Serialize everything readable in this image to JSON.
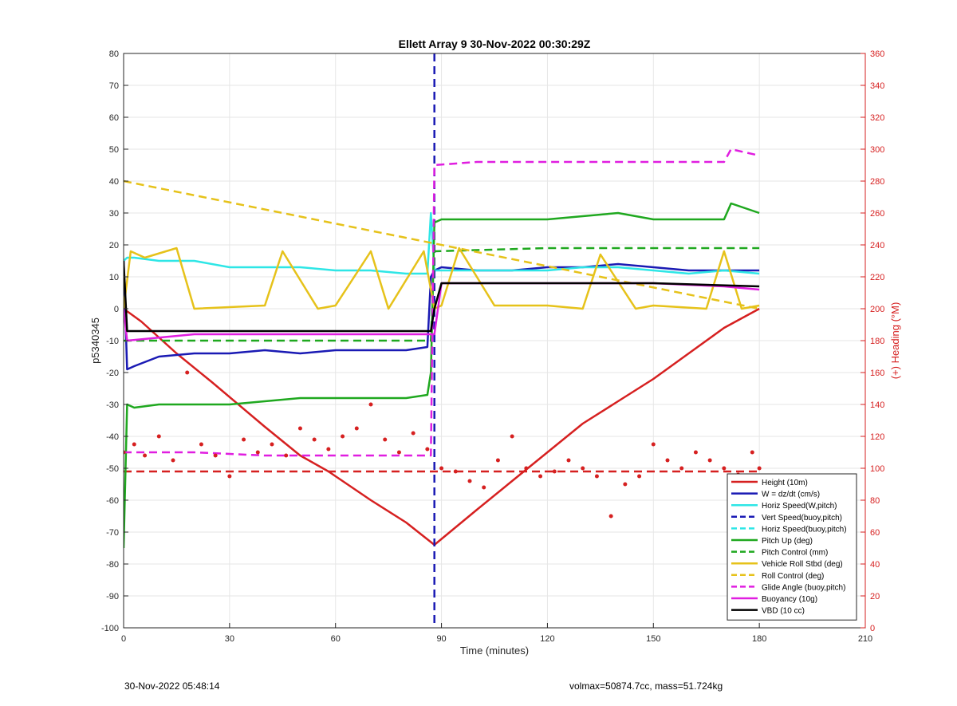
{
  "chart_data": {
    "type": "line",
    "title": "Ellett Array 9 30-Nov-2022 00:30:29Z",
    "xlabel": "Time (minutes)",
    "ylabel": "p5340345",
    "y2label": "(+) Heading (°M)",
    "xlim": [
      0,
      210
    ],
    "ylim": [
      -100,
      80
    ],
    "y2lim": [
      0,
      360
    ],
    "xticks": [
      0,
      30,
      60,
      90,
      120,
      150,
      180,
      210
    ],
    "yticks": [
      -100,
      -90,
      -80,
      -70,
      -60,
      -50,
      -40,
      -30,
      -20,
      -10,
      0,
      10,
      20,
      30,
      40,
      50,
      60,
      70,
      80
    ],
    "y2ticks": [
      0,
      20,
      40,
      60,
      80,
      100,
      120,
      140,
      160,
      180,
      200,
      220,
      240,
      260,
      280,
      300,
      320,
      340,
      360
    ],
    "grid": true,
    "legend_position": "bottom-right",
    "colors": {
      "height": "#d62020",
      "w": "#1a1ab4",
      "cyan": "#2ee6e6",
      "green": "#1fa81f",
      "gold": "#e6c21a",
      "magenta": "#e01ee0",
      "black": "#000000",
      "right_axis": "#d62020"
    },
    "series": [
      {
        "name": "Height (10m)",
        "color": "#d62020",
        "dash": "solid",
        "x": [
          0,
          5,
          15,
          25,
          40,
          50,
          58,
          70,
          80,
          88,
          100,
          110,
          120,
          130,
          140,
          150,
          160,
          170,
          180
        ],
        "y": [
          0,
          -4,
          -14,
          -23,
          -37,
          -46,
          -51,
          -60,
          -67,
          -74,
          -63,
          -54,
          -45,
          -36,
          -29,
          -22,
          -14,
          -6,
          0
        ]
      },
      {
        "name": "W = dz/dt (cm/s)",
        "color": "#1a1ab4",
        "dash": "solid",
        "x": [
          0,
          1,
          3,
          10,
          20,
          30,
          40,
          50,
          60,
          70,
          80,
          86,
          87,
          88,
          90,
          100,
          110,
          120,
          130,
          140,
          150,
          160,
          170,
          180
        ],
        "y": [
          15,
          -19,
          -18,
          -15,
          -14,
          -14,
          -13,
          -14,
          -13,
          -13,
          -13,
          -12,
          10,
          12,
          13,
          12,
          12,
          13,
          13,
          14,
          13,
          12,
          12,
          12
        ]
      },
      {
        "name": "Horiz Speed(W,pitch)",
        "color": "#2ee6e6",
        "dash": "solid",
        "x": [
          0,
          1,
          3,
          10,
          20,
          30,
          40,
          50,
          60,
          70,
          80,
          86,
          87,
          88,
          90,
          100,
          110,
          120,
          130,
          140,
          150,
          160,
          170,
          180
        ],
        "y": [
          15,
          16,
          16,
          15,
          15,
          13,
          13,
          13,
          12,
          12,
          11,
          11,
          30,
          12,
          12,
          12,
          12,
          12,
          13,
          13,
          12,
          11,
          12,
          11
        ]
      },
      {
        "name": "Vert Speed(buoy,pitch)",
        "color": "#1a1ab4",
        "dash": "dashed",
        "x": [
          88,
          88
        ],
        "y": [
          80,
          -100
        ]
      },
      {
        "name": "Horiz Speed(buoy,pitch)",
        "color": "#2ee6e6",
        "dash": "dashed",
        "x": [],
        "y": []
      },
      {
        "name": "Pitch Up (deg)",
        "color": "#1fa81f",
        "dash": "solid",
        "x": [
          0,
          1,
          3,
          10,
          20,
          30,
          40,
          50,
          60,
          70,
          80,
          86,
          87,
          88,
          90,
          100,
          110,
          120,
          130,
          140,
          150,
          160,
          170,
          172,
          180
        ],
        "y": [
          -75,
          -30,
          -31,
          -30,
          -30,
          -30,
          -29,
          -28,
          -28,
          -28,
          -28,
          -27,
          -20,
          27,
          28,
          28,
          28,
          28,
          29,
          30,
          28,
          28,
          28,
          33,
          30
        ]
      },
      {
        "name": "Pitch Control (mm)",
        "color": "#1fa81f",
        "dash": "dashed",
        "x": [
          0,
          10,
          40,
          80,
          87,
          88,
          120,
          180
        ],
        "y": [
          -10,
          -10,
          -10,
          -10,
          -10,
          18,
          19,
          19
        ]
      },
      {
        "name": "Vehicle Roll Stbd (deg)",
        "color": "#e6c21a",
        "dash": "solid",
        "x": [
          0,
          2,
          6,
          15,
          20,
          40,
          45,
          55,
          60,
          70,
          75,
          85,
          88,
          90,
          95,
          105,
          120,
          130,
          135,
          145,
          150,
          165,
          170,
          175,
          180
        ],
        "y": [
          0,
          18,
          16,
          19,
          0,
          1,
          18,
          0,
          1,
          18,
          0,
          18,
          0,
          1,
          19,
          1,
          1,
          0,
          17,
          0,
          1,
          0,
          18,
          0,
          1
        ]
      },
      {
        "name": "Roll Control (deg)",
        "color": "#e6c21a",
        "dash": "dashed",
        "x": [
          0,
          180
        ],
        "y": [
          40,
          0
        ]
      },
      {
        "name": "Glide Angle (buoy,pitch)",
        "color": "#e01ee0",
        "dash": "dashed",
        "x": [
          0,
          20,
          40,
          60,
          80,
          87,
          88,
          100,
          120,
          140,
          160,
          170,
          172,
          180
        ],
        "y": [
          -45,
          -45,
          -46,
          -46,
          -46,
          -46,
          45,
          46,
          46,
          46,
          46,
          46,
          50,
          48
        ]
      },
      {
        "name": "Buoyancy (10g)",
        "color": "#e01ee0",
        "dash": "solid",
        "x": [
          0,
          1,
          20,
          88,
          90,
          120,
          150,
          170,
          180
        ],
        "y": [
          0,
          -10,
          -8,
          -8,
          8,
          8,
          8,
          7,
          6
        ]
      },
      {
        "name": "VBD (10 cc)",
        "color": "#000000",
        "dash": "solid",
        "x": [
          0,
          1,
          3,
          20,
          40,
          60,
          80,
          87,
          88,
          90,
          120,
          150,
          180
        ],
        "y": [
          15,
          -7,
          -7,
          -7,
          -7,
          -7,
          -7,
          -7,
          0,
          8,
          8,
          8,
          7
        ]
      }
    ],
    "heading": {
      "series_name": "Heading",
      "target_value_deg": 98,
      "x": [
        0,
        3,
        6,
        10,
        14,
        18,
        22,
        26,
        30,
        34,
        38,
        42,
        46,
        50,
        54,
        58,
        62,
        66,
        70,
        74,
        78,
        82,
        86,
        90,
        94,
        98,
        102,
        106,
        110,
        114,
        118,
        122,
        126,
        130,
        134,
        138,
        142,
        146,
        150,
        154,
        158,
        162,
        166,
        170,
        174,
        178,
        180
      ],
      "y": [
        110,
        115,
        108,
        120,
        105,
        160,
        115,
        108,
        95,
        118,
        110,
        115,
        108,
        125,
        118,
        112,
        120,
        125,
        140,
        118,
        110,
        122,
        112,
        100,
        98,
        92,
        88,
        105,
        120,
        100,
        95,
        98,
        105,
        100,
        95,
        70,
        90,
        95,
        115,
        105,
        100,
        110,
        105,
        100,
        96,
        110,
        100
      ]
    }
  },
  "footer": {
    "left_text": "30-Nov-2022 05:48:14",
    "right_text": "volmax=50874.7cc, mass=51.724kg"
  }
}
